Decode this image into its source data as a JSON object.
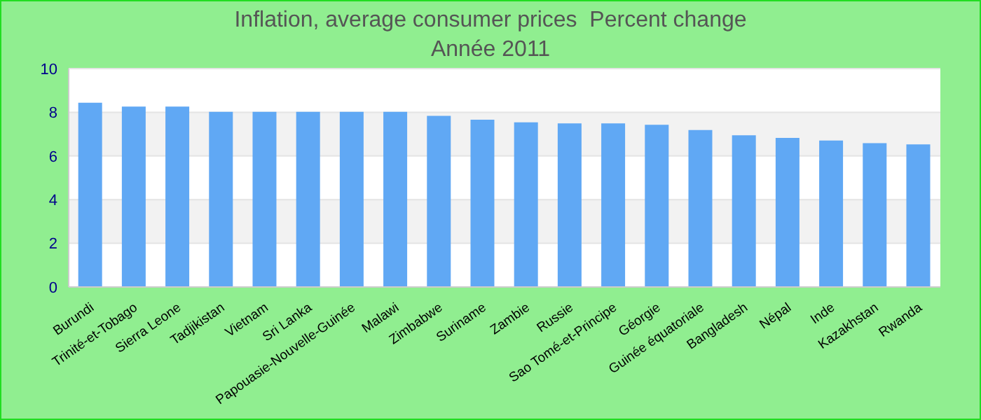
{
  "chart_data": {
    "type": "bar",
    "title": "Inflation, average consumer prices  Percent change",
    "subtitle": "Année 2011",
    "categories": [
      "Burundi",
      "Trinité-et-Tobago",
      "Sierra Leone",
      "Tadjikistan",
      "Vietnam",
      "Sri Lanka",
      "Papouasie-Nouvelle-Guinée",
      "Malawi",
      "Zimbabwe",
      "Suriname",
      "Zambie",
      "Russie",
      "Sao Tomé-et-Principe",
      "Géorgie",
      "Guinée équatoriale",
      "Bangladesh",
      "Népal",
      "Inde",
      "Kazakhstan",
      "Rwanda"
    ],
    "values": [
      8.44,
      8.26,
      8.26,
      8.02,
      8.02,
      8.02,
      8.02,
      8.02,
      7.84,
      7.66,
      7.54,
      7.49,
      7.49,
      7.43,
      7.19,
      6.95,
      6.83,
      6.71,
      6.59,
      6.53
    ],
    "color": "#60a8f4",
    "ylim": [
      0,
      10
    ],
    "yticks": [
      0,
      2,
      4,
      6,
      8,
      10
    ],
    "grid": "y"
  }
}
